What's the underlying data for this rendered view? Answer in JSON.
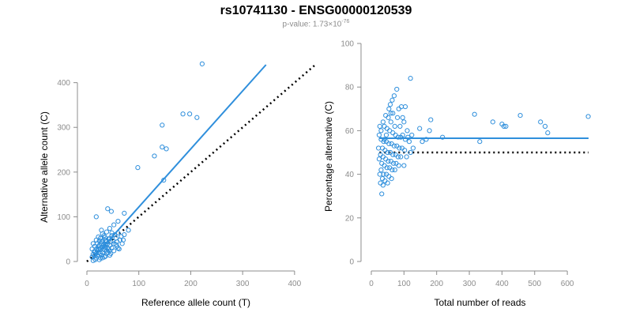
{
  "title": "rs10741130 - ENSG00000120539",
  "subtitle": {
    "prefix": "p-value: 1.73×10",
    "exponent": "-76"
  },
  "colors": {
    "points": "#2f8fdc",
    "fit_line": "#2f8fdc",
    "reference_line": "#000000",
    "axis": "#8c8c8c"
  },
  "chart_data": [
    {
      "type": "scatter",
      "xlabel": "Reference allele count (T)",
      "ylabel": "Alternative allele count (C)",
      "xlim": [
        0,
        420
      ],
      "ylim": [
        0,
        440
      ],
      "xticks": [
        0,
        100,
        200,
        300,
        400
      ],
      "yticks": [
        0,
        100,
        200,
        300,
        400
      ],
      "grid": false,
      "series": [
        {
          "values": [
            [
              222,
              442
            ],
            [
              185,
              330
            ],
            [
              198,
              330
            ],
            [
              212,
              322
            ],
            [
              145,
              305
            ],
            [
              130,
              236
            ],
            [
              145,
              256
            ],
            [
              153,
              252
            ],
            [
              98,
              210
            ],
            [
              148,
              182
            ],
            [
              47,
              112
            ],
            [
              18,
              100
            ],
            [
              40,
              118
            ],
            [
              72,
              108
            ],
            [
              60,
              90
            ],
            [
              52,
              82
            ],
            [
              28,
              70
            ],
            [
              44,
              74
            ],
            [
              38,
              66
            ],
            [
              60,
              64
            ],
            [
              30,
              62
            ],
            [
              33,
              58
            ],
            [
              48,
              58
            ],
            [
              22,
              55
            ],
            [
              26,
              52
            ],
            [
              35,
              54
            ],
            [
              42,
              50
            ],
            [
              56,
              52
            ],
            [
              18,
              48
            ],
            [
              24,
              46
            ],
            [
              30,
              46
            ],
            [
              38,
              44
            ],
            [
              46,
              44
            ],
            [
              64,
              48
            ],
            [
              12,
              40
            ],
            [
              20,
              40
            ],
            [
              28,
              40
            ],
            [
              36,
              38
            ],
            [
              44,
              36
            ],
            [
              52,
              40
            ],
            [
              15,
              34
            ],
            [
              22,
              34
            ],
            [
              30,
              32
            ],
            [
              40,
              30
            ],
            [
              48,
              30
            ],
            [
              58,
              34
            ],
            [
              10,
              28
            ],
            [
              18,
              28
            ],
            [
              26,
              26
            ],
            [
              34,
              26
            ],
            [
              44,
              24
            ],
            [
              52,
              24
            ],
            [
              62,
              28
            ],
            [
              14,
              22
            ],
            [
              22,
              20
            ],
            [
              30,
              20
            ],
            [
              38,
              18
            ],
            [
              46,
              18
            ],
            [
              12,
              16
            ],
            [
              20,
              14
            ],
            [
              28,
              14
            ],
            [
              36,
              12
            ],
            [
              44,
              14
            ],
            [
              10,
              10
            ],
            [
              18,
              8
            ],
            [
              26,
              8
            ],
            [
              34,
              10
            ],
            [
              16,
              4
            ],
            [
              24,
              4
            ],
            [
              12,
              2
            ],
            [
              68,
              40
            ],
            [
              72,
              60
            ],
            [
              80,
              70
            ],
            [
              58,
              44
            ],
            [
              36,
              30
            ],
            [
              24,
              36
            ],
            [
              16,
              22
            ],
            [
              40,
              40
            ],
            [
              50,
              46
            ],
            [
              32,
              36
            ],
            [
              20,
              24
            ],
            [
              44,
              52
            ],
            [
              54,
              60
            ],
            [
              26,
              30
            ],
            [
              14,
              12
            ],
            [
              30,
              8
            ],
            [
              40,
              20
            ],
            [
              66,
              56
            ],
            [
              56,
              38
            ],
            [
              48,
              64
            ],
            [
              36,
              48
            ],
            [
              28,
              44
            ],
            [
              22,
              28
            ],
            [
              34,
              34
            ],
            [
              42,
              28
            ],
            [
              60,
              30
            ],
            [
              70,
              48
            ],
            [
              18,
              18
            ],
            [
              26,
              18
            ],
            [
              38,
              24
            ]
          ]
        }
      ],
      "fit_line": {
        "x": [
          10,
          345
        ],
        "y": [
          5,
          440
        ]
      },
      "reference_line": {
        "x": [
          0,
          440
        ],
        "y": [
          0,
          440
        ]
      }
    },
    {
      "type": "scatter",
      "xlabel": "Total number of reads",
      "ylabel": "Percentage alternative (C)",
      "xlim": [
        0,
        665
      ],
      "ylim": [
        0,
        100
      ],
      "xticks": [
        0,
        100,
        200,
        300,
        400,
        500,
        600
      ],
      "yticks": [
        0,
        20,
        40,
        60,
        80,
        100
      ],
      "grid": false,
      "series": [
        {
          "values": [
            [
              664,
              66.5
            ],
            [
              518,
              64
            ],
            [
              532,
              62
            ],
            [
              540,
              59
            ],
            [
              456,
              67
            ],
            [
              400,
              63
            ],
            [
              406,
              62
            ],
            [
              372,
              64
            ],
            [
              412,
              62
            ],
            [
              316,
              67.5
            ],
            [
              332,
              55
            ],
            [
              218,
              57
            ],
            [
              182,
              65
            ],
            [
              178,
              60
            ],
            [
              156,
              55
            ],
            [
              168,
              56
            ],
            [
              148,
              61
            ],
            [
              128,
              52
            ],
            [
              120,
              84
            ],
            [
              112,
              57
            ],
            [
              104,
              71
            ],
            [
              96,
              66
            ],
            [
              78,
              79
            ],
            [
              70,
              76
            ],
            [
              64,
              74
            ],
            [
              58,
              72
            ],
            [
              84,
              70
            ],
            [
              92,
              71
            ],
            [
              100,
              64
            ],
            [
              44,
              67
            ],
            [
              52,
              66
            ],
            [
              60,
              64
            ],
            [
              36,
              64
            ],
            [
              40,
              62
            ],
            [
              48,
              61
            ],
            [
              56,
              60
            ],
            [
              66,
              59
            ],
            [
              74,
              58
            ],
            [
              82,
              57
            ],
            [
              90,
              57
            ],
            [
              30,
              56
            ],
            [
              38,
              55
            ],
            [
              46,
              55
            ],
            [
              54,
              54
            ],
            [
              62,
              54
            ],
            [
              70,
              53
            ],
            [
              78,
              53
            ],
            [
              86,
              52
            ],
            [
              94,
              52
            ],
            [
              102,
              51
            ],
            [
              34,
              52
            ],
            [
              42,
              51
            ],
            [
              50,
              50
            ],
            [
              58,
              50
            ],
            [
              66,
              49
            ],
            [
              74,
              49
            ],
            [
              82,
              48
            ],
            [
              90,
              48
            ],
            [
              28,
              49
            ],
            [
              36,
              48
            ],
            [
              44,
              47
            ],
            [
              52,
              46
            ],
            [
              60,
              46
            ],
            [
              68,
              45
            ],
            [
              76,
              45
            ],
            [
              84,
              44
            ],
            [
              32,
              45
            ],
            [
              40,
              44
            ],
            [
              48,
              43
            ],
            [
              56,
              43
            ],
            [
              64,
              42
            ],
            [
              72,
              42
            ],
            [
              30,
              42
            ],
            [
              38,
              40
            ],
            [
              46,
              40
            ],
            [
              54,
              39
            ],
            [
              62,
              38
            ],
            [
              26,
              40
            ],
            [
              34,
              38
            ],
            [
              42,
              37
            ],
            [
              50,
              36
            ],
            [
              28,
              36
            ],
            [
              36,
              35
            ],
            [
              32,
              31
            ],
            [
              24,
              58
            ],
            [
              26,
              62
            ],
            [
              22,
              52
            ],
            [
              24,
              47
            ],
            [
              30,
              60
            ],
            [
              66,
              68
            ],
            [
              110,
              60
            ],
            [
              116,
              55
            ],
            [
              120,
              50
            ],
            [
              124,
              58
            ],
            [
              72,
              62
            ],
            [
              80,
              66
            ],
            [
              88,
              62
            ],
            [
              96,
              58
            ],
            [
              104,
              56
            ],
            [
              60,
              68
            ],
            [
              54,
              70
            ],
            [
              46,
              58
            ],
            [
              40,
              56
            ],
            [
              108,
              48
            ],
            [
              100,
              44
            ]
          ]
        }
      ],
      "fit_line": {
        "x": [
          25,
          665
        ],
        "y": [
          56.5,
          56.5
        ]
      },
      "reference_line": {
        "x": [
          25,
          665
        ],
        "y": [
          50,
          50
        ]
      }
    }
  ]
}
